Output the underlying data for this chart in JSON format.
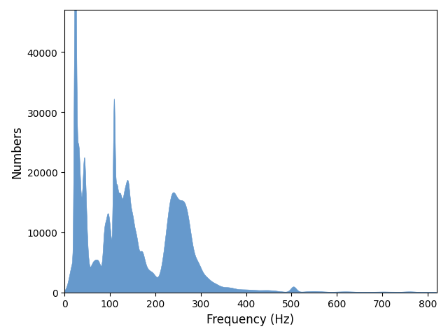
{
  "xlabel": "Frequency (Hz)",
  "ylabel": "Numbers",
  "xlim": [
    0,
    820
  ],
  "ylim": [
    0,
    47000
  ],
  "bar_color": "#6699cc",
  "background_color": "#ffffff",
  "x_ticks": [
    0,
    100,
    200,
    300,
    400,
    500,
    600,
    700,
    800
  ],
  "y_ticks": [
    0,
    10000,
    20000,
    30000,
    40000
  ],
  "figsize": [
    6.4,
    4.81
  ],
  "dpi": 100
}
